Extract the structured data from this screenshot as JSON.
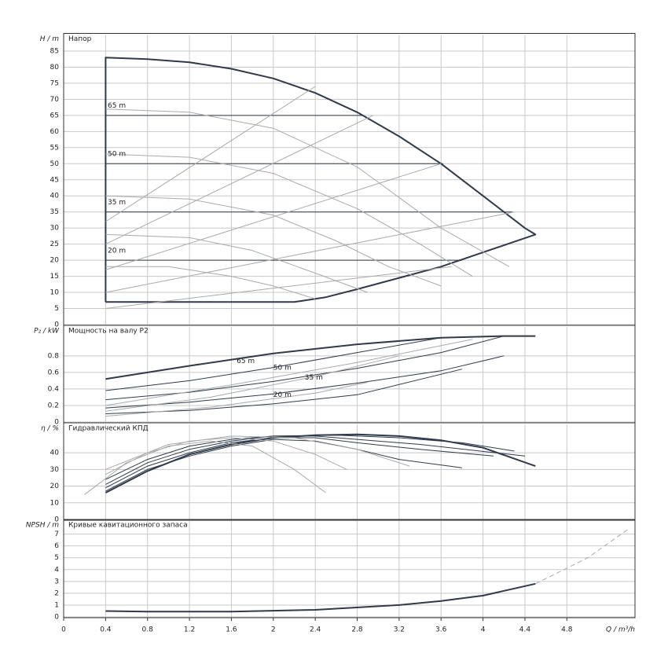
{
  "chart_data": [
    {
      "type": "line",
      "title": "Напор",
      "ylabel": "H / m",
      "ylim": [
        0,
        90
      ],
      "yticks": [
        0,
        5,
        10,
        15,
        20,
        25,
        30,
        35,
        40,
        45,
        50,
        55,
        60,
        65,
        70,
        75,
        80,
        85
      ],
      "series": [
        {
          "color": "#2f3a4a",
          "width": 2,
          "x": [
            0.4,
            0.4,
            0.8,
            1.2,
            1.6,
            2.0,
            2.4,
            2.8,
            3.2,
            3.6,
            4.0,
            4.4,
            4.5,
            3.6,
            3.2,
            2.8,
            2.5,
            2.2,
            0.4
          ],
          "values": [
            7,
            83,
            82.5,
            81.5,
            79.5,
            76.5,
            72,
            66,
            58.5,
            50,
            40,
            30,
            28,
            18,
            14.5,
            11,
            8.5,
            7,
            7
          ]
        },
        {
          "color": "#2f3a4a",
          "width": 1,
          "x": [
            0.4,
            2.85
          ],
          "values": [
            65,
            65
          ]
        },
        {
          "color": "#2f3a4a",
          "width": 1,
          "x": [
            0.4,
            3.62
          ],
          "values": [
            50,
            50
          ]
        },
        {
          "color": "#2f3a4a",
          "width": 1,
          "x": [
            0.4,
            4.28
          ],
          "values": [
            35,
            35
          ]
        },
        {
          "color": "#2f3a4a",
          "width": 1,
          "x": [
            0.4,
            3.8
          ],
          "values": [
            20,
            20
          ]
        },
        {
          "color": "#aaaaaa",
          "width": 1,
          "x": [
            0.4,
            1.2,
            2.0,
            2.8,
            3.6,
            4.25
          ],
          "values": [
            67,
            66,
            61,
            49,
            30,
            18
          ]
        },
        {
          "color": "#aaaaaa",
          "width": 1,
          "x": [
            0.4,
            1.2,
            2.0,
            2.8,
            3.4,
            3.9
          ],
          "values": [
            53,
            52,
            47,
            36,
            25,
            15
          ]
        },
        {
          "color": "#aaaaaa",
          "width": 1,
          "x": [
            0.4,
            1.2,
            2.0,
            2.6,
            3.1,
            3.6
          ],
          "values": [
            40,
            39,
            34,
            26,
            18,
            12
          ]
        },
        {
          "color": "#aaaaaa",
          "width": 1,
          "x": [
            0.4,
            1.2,
            1.8,
            2.4,
            2.9
          ],
          "values": [
            28,
            27,
            23,
            16,
            10
          ]
        },
        {
          "color": "#aaaaaa",
          "width": 1,
          "x": [
            0.4,
            1.0,
            1.6,
            2.0,
            2.4
          ],
          "values": [
            18,
            18,
            15,
            12,
            8
          ]
        },
        {
          "color": "#aaaaaa",
          "width": 1,
          "x": [
            0.4,
            2.4
          ],
          "values": [
            32,
            74
          ]
        },
        {
          "color": "#aaaaaa",
          "width": 1,
          "x": [
            0.4,
            2.95
          ],
          "values": [
            25,
            65
          ]
        },
        {
          "color": "#aaaaaa",
          "width": 1,
          "x": [
            0.4,
            3.6
          ],
          "values": [
            17,
            50
          ]
        },
        {
          "color": "#aaaaaa",
          "width": 1,
          "x": [
            0.4,
            4.3
          ],
          "values": [
            10,
            35
          ]
        },
        {
          "color": "#aaaaaa",
          "width": 1,
          "x": [
            0.4,
            3.7
          ],
          "values": [
            5,
            18
          ]
        }
      ],
      "annotations": [
        {
          "text": "65 m",
          "x": 0.42,
          "y": 66.5
        },
        {
          "text": "50 m",
          "x": 0.42,
          "y": 51.5
        },
        {
          "text": "35 m",
          "x": 0.42,
          "y": 36.5
        },
        {
          "text": "20 m",
          "x": 0.42,
          "y": 21.5
        }
      ]
    },
    {
      "type": "line",
      "title": "Мощность на валу P2",
      "ylabel": "P₂ / kW",
      "ylim": [
        0,
        1.15
      ],
      "yticks": [
        0,
        0.2,
        0.4,
        0.6,
        0.8
      ],
      "series": [
        {
          "color": "#2f3a4a",
          "width": 2,
          "x": [
            0.4,
            1.2,
            2.0,
            2.8,
            3.6,
            4.2,
            4.5
          ],
          "values": [
            0.52,
            0.68,
            0.83,
            0.94,
            1.02,
            1.04,
            1.04
          ]
        },
        {
          "color": "#2f3a4a",
          "width": 1,
          "x": [
            0.4,
            1.2,
            2.0,
            2.8,
            3.6
          ],
          "values": [
            0.38,
            0.5,
            0.66,
            0.84,
            1.02
          ]
        },
        {
          "color": "#2f3a4a",
          "width": 1,
          "x": [
            0.4,
            1.2,
            2.0,
            2.8,
            3.6,
            4.2
          ],
          "values": [
            0.27,
            0.36,
            0.49,
            0.65,
            0.84,
            1.04
          ]
        },
        {
          "color": "#2f3a4a",
          "width": 1,
          "x": [
            0.4,
            1.2,
            2.0,
            2.8,
            3.6,
            4.2
          ],
          "values": [
            0.17,
            0.24,
            0.34,
            0.47,
            0.62,
            0.8
          ]
        },
        {
          "color": "#2f3a4a",
          "width": 1,
          "x": [
            0.4,
            1.2,
            2.0,
            2.8,
            3.8
          ],
          "values": [
            0.1,
            0.14,
            0.22,
            0.33,
            0.64
          ]
        },
        {
          "color": "#aaaaaa",
          "width": 1,
          "x": [
            0.4,
            1.4,
            2.4,
            3.2
          ],
          "values": [
            0.13,
            0.3,
            0.55,
            0.8
          ]
        },
        {
          "color": "#aaaaaa",
          "width": 1,
          "x": [
            0.4,
            1.4,
            2.4,
            2.9
          ],
          "values": [
            0.07,
            0.18,
            0.35,
            0.48
          ]
        },
        {
          "color": "#aaaaaa",
          "width": 1,
          "x": [
            0.4,
            1.6,
            2.8,
            3.9
          ],
          "values": [
            0.2,
            0.45,
            0.72,
            1.0
          ]
        }
      ],
      "annotations": [
        {
          "text": "65 m",
          "x": 1.65,
          "y": 0.68
        },
        {
          "text": "50 m",
          "x": 2.0,
          "y": 0.6
        },
        {
          "text": "35 m",
          "x": 2.3,
          "y": 0.48
        },
        {
          "text": "20 m",
          "x": 2.0,
          "y": 0.27
        }
      ]
    },
    {
      "type": "line",
      "title": "Гидравлический КПД",
      "ylabel": "η / %",
      "ylim": [
        0,
        57
      ],
      "yticks": [
        0,
        10,
        20,
        30,
        40
      ],
      "series": [
        {
          "color": "#2f3a4a",
          "width": 2,
          "x": [
            0.4,
            0.8,
            1.2,
            1.6,
            2.0,
            2.4,
            2.8,
            3.2,
            3.6,
            4.0,
            4.5
          ],
          "values": [
            16,
            29,
            39,
            45,
            49,
            50.5,
            51,
            50,
            47.5,
            43,
            32
          ]
        },
        {
          "color": "#2f3a4a",
          "width": 1,
          "x": [
            0.4,
            0.8,
            1.2,
            1.6,
            2.0,
            2.4,
            2.8,
            3.2,
            3.8
          ],
          "values": [
            17,
            30,
            38,
            44,
            48,
            47,
            42,
            36,
            31
          ]
        },
        {
          "color": "#2f3a4a",
          "width": 1,
          "x": [
            0.4,
            0.8,
            1.2,
            1.6,
            2.0,
            2.4,
            2.8,
            3.4,
            4.1
          ],
          "values": [
            19,
            32,
            40,
            46,
            49,
            49,
            46,
            42,
            38
          ]
        },
        {
          "color": "#2f3a4a",
          "width": 1,
          "x": [
            0.4,
            0.8,
            1.2,
            1.6,
            2.0,
            2.4,
            2.8,
            3.4,
            4.4
          ],
          "values": [
            21,
            34,
            42,
            47,
            50,
            50,
            48,
            45,
            38
          ]
        },
        {
          "color": "#2f3a4a",
          "width": 1,
          "x": [
            0.4,
            0.8,
            1.2,
            1.6,
            2.0,
            2.6,
            3.2,
            3.8,
            4.3
          ],
          "values": [
            24,
            36,
            44,
            48,
            50,
            50.5,
            49,
            46,
            41
          ]
        },
        {
          "color": "#aaaaaa",
          "width": 1,
          "x": [
            0.2,
            0.6,
            1.0,
            1.4,
            1.8,
            2.2,
            2.5
          ],
          "values": [
            15,
            34,
            44,
            47,
            44,
            30,
            16
          ]
        },
        {
          "color": "#aaaaaa",
          "width": 1,
          "x": [
            0.4,
            0.8,
            1.2,
            1.6,
            2.0,
            2.4,
            2.7
          ],
          "values": [
            27,
            40,
            47,
            49,
            47,
            39,
            30
          ]
        },
        {
          "color": "#aaaaaa",
          "width": 1,
          "x": [
            0.4,
            1.0,
            1.6,
            2.2,
            2.8,
            3.3
          ],
          "values": [
            30,
            45,
            50,
            49,
            42,
            32
          ]
        }
      ]
    },
    {
      "type": "line",
      "title": "Кривые кавитационного запаса",
      "ylabel": "NPSH / m",
      "ylim": [
        0,
        8.1
      ],
      "yticks": [
        0,
        1,
        2,
        3,
        4,
        5,
        6,
        7
      ],
      "xlabel": "Q / m³/h",
      "xlim": [
        0,
        5.45
      ],
      "xticks": [
        0,
        0.4,
        0.8,
        1.2,
        1.6,
        2,
        2.4,
        2.8,
        3.2,
        3.6,
        4,
        4.4,
        4.8
      ],
      "series": [
        {
          "color": "#2f3a4a",
          "width": 2,
          "x": [
            0.4,
            0.8,
            1.6,
            2.4,
            3.2,
            3.6,
            4.0,
            4.5
          ],
          "values": [
            0.5,
            0.45,
            0.45,
            0.6,
            1.0,
            1.35,
            1.8,
            2.8
          ]
        },
        {
          "color": "#aaaaaa",
          "width": 1,
          "dash": true,
          "x": [
            4.5,
            5.0,
            5.4
          ],
          "values": [
            2.8,
            5.0,
            7.5
          ]
        }
      ]
    }
  ]
}
